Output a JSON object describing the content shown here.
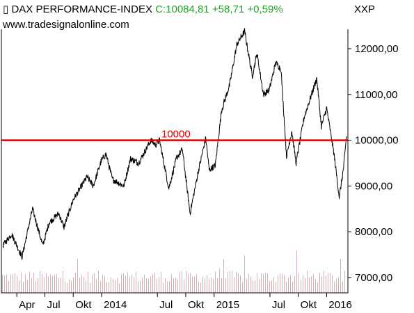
{
  "header": {
    "instrument": "DAX PERFORMANCE-INDEX",
    "close_label": "C:10084,81",
    "change": "+58,71",
    "change_pct": "+0,59%",
    "symbol": "XXP",
    "website": "www.tradesignalonline.com"
  },
  "colors": {
    "price_line": "#000000",
    "reference_line": "#e00000",
    "change_text": "#1fa51f",
    "volume_bars": "#d9b0b0"
  },
  "chart_data": {
    "type": "line",
    "title": "DAX PERFORMANCE-INDEX",
    "xlabel": "",
    "ylabel": "",
    "ylim": [
      6600,
      12500
    ],
    "y_ticks": [
      7000,
      8000,
      9000,
      10000,
      11000,
      12000
    ],
    "y_tick_labels": [
      "7000,00",
      "8000,00",
      "9000,00",
      "10000,00",
      "11000,00",
      "12000,00"
    ],
    "x_tick_labels": [
      "Apr",
      "Jul",
      "Okt",
      "2014",
      "Jul",
      "Okt",
      "2015",
      "Jul",
      "Okt",
      "2016"
    ],
    "x_tick_dates": [
      "2013-04-01",
      "2013-07-01",
      "2013-10-01",
      "2014-01-01",
      "2014-07-01",
      "2014-10-01",
      "2015-01-01",
      "2015-07-01",
      "2015-10-01",
      "2016-01-01"
    ],
    "x_range": [
      "2013-02-10",
      "2016-03-10"
    ],
    "grid": false,
    "reference_line": {
      "value": 10000,
      "label": "10000"
    },
    "series": [
      {
        "values": [
          [
            "2013-02-15",
            7700
          ],
          [
            "2013-03-15",
            7950
          ],
          [
            "2013-04-18",
            7450
          ],
          [
            "2013-05-22",
            8500
          ],
          [
            "2013-06-24",
            7700
          ],
          [
            "2013-07-15",
            8200
          ],
          [
            "2013-08-15",
            8400
          ],
          [
            "2013-09-01",
            8100
          ],
          [
            "2013-10-01",
            8700
          ],
          [
            "2013-11-15",
            9200
          ],
          [
            "2013-12-05",
            9000
          ],
          [
            "2013-12-31",
            9550
          ],
          [
            "2014-01-15",
            9700
          ],
          [
            "2014-02-05",
            9150
          ],
          [
            "2014-03-14",
            9000
          ],
          [
            "2014-04-05",
            9600
          ],
          [
            "2014-05-01",
            9500
          ],
          [
            "2014-06-10",
            10000
          ],
          [
            "2014-06-25",
            9900
          ],
          [
            "2014-07-08",
            10000
          ],
          [
            "2014-08-07",
            8950
          ],
          [
            "2014-09-01",
            9600
          ],
          [
            "2014-09-20",
            9800
          ],
          [
            "2014-10-15",
            8400
          ],
          [
            "2014-11-10",
            9300
          ],
          [
            "2014-12-05",
            10050
          ],
          [
            "2014-12-16",
            9350
          ],
          [
            "2015-01-05",
            9450
          ],
          [
            "2015-01-25",
            10650
          ],
          [
            "2015-02-20",
            11200
          ],
          [
            "2015-03-16",
            12100
          ],
          [
            "2015-04-10",
            12380
          ],
          [
            "2015-05-05",
            11400
          ],
          [
            "2015-05-20",
            11900
          ],
          [
            "2015-06-10",
            11000
          ],
          [
            "2015-06-29",
            11100
          ],
          [
            "2015-07-20",
            11700
          ],
          [
            "2015-08-06",
            11550
          ],
          [
            "2015-08-24",
            9650
          ],
          [
            "2015-09-10",
            10200
          ],
          [
            "2015-09-24",
            9500
          ],
          [
            "2015-10-20",
            10500
          ],
          [
            "2015-11-30",
            11350
          ],
          [
            "2015-12-15",
            10300
          ],
          [
            "2016-01-01",
            10700
          ],
          [
            "2016-01-25",
            9700
          ],
          [
            "2016-02-11",
            8750
          ],
          [
            "2016-02-25",
            9400
          ],
          [
            "2016-03-01",
            9750
          ],
          [
            "2016-03-05",
            10085
          ]
        ]
      }
    ],
    "volume_axis_note": "volume bars shown without scale"
  }
}
